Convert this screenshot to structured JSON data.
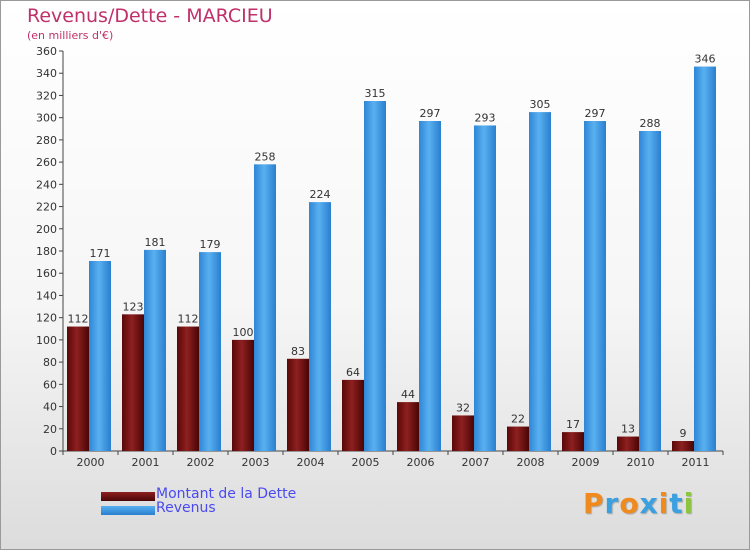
{
  "chart_data": {
    "type": "bar",
    "title": "Revenus/Dette - MARCIEU",
    "subtitle": "(en milliers d'€)",
    "categories": [
      "2000",
      "2001",
      "2002",
      "2003",
      "2004",
      "2005",
      "2006",
      "2007",
      "2008",
      "2009",
      "2010",
      "2011"
    ],
    "series": [
      {
        "name": "Montant de la Dette",
        "color": "#7a1414",
        "values": [
          112,
          123,
          112,
          100,
          83,
          64,
          44,
          32,
          22,
          17,
          13,
          9
        ]
      },
      {
        "name": "Revenus",
        "color": "#3d9ae0",
        "values": [
          171,
          181,
          179,
          258,
          224,
          315,
          297,
          293,
          305,
          297,
          288,
          346
        ]
      }
    ],
    "ylim": [
      0,
      360
    ],
    "ytick_step": 20,
    "yticks": [
      "0",
      "20",
      "40",
      "60",
      "80",
      "100",
      "120",
      "140",
      "160",
      "180",
      "200",
      "220",
      "240",
      "260",
      "280",
      "300",
      "320",
      "340",
      "360"
    ],
    "grid": false,
    "legend_position": "bottom-left"
  },
  "logo": {
    "letters": [
      "P",
      "r",
      "o",
      "x",
      "i",
      "t",
      "i"
    ],
    "colors": [
      "#f08a1c",
      "#3ba0e0",
      "#f08a1c",
      "#3ba0e0",
      "#f08a1c",
      "#3ba0e0",
      "#8cc63f"
    ]
  }
}
